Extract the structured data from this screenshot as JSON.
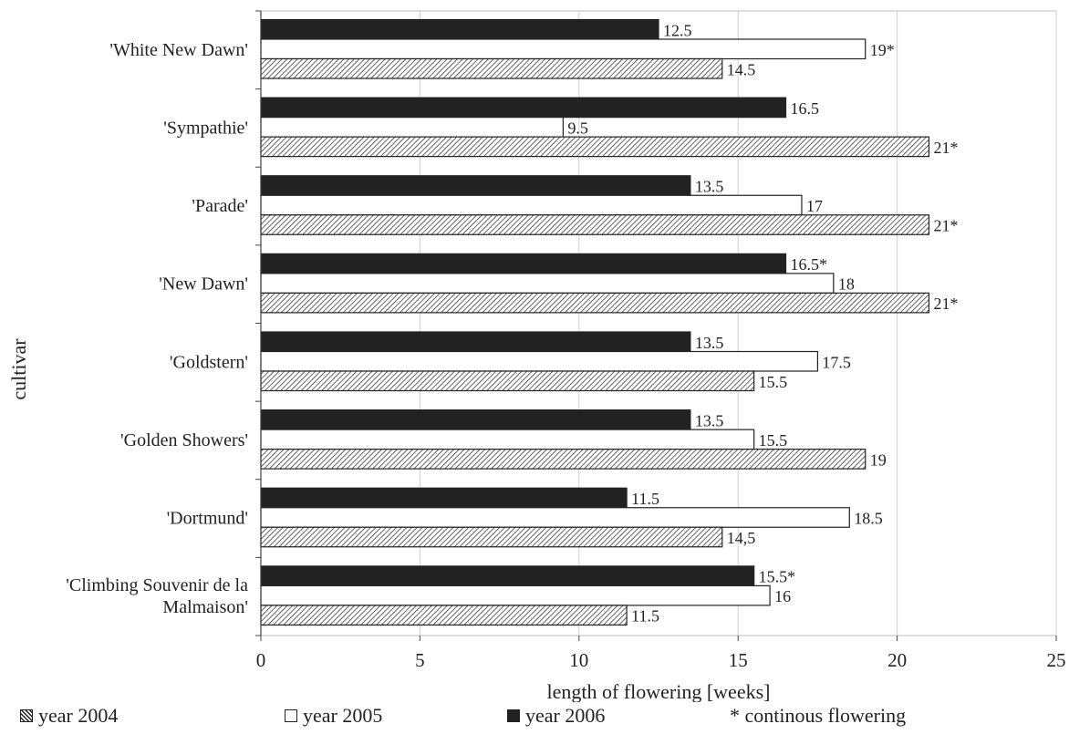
{
  "chart_data": {
    "type": "bar",
    "orientation": "horizontal",
    "xlabel": "length of flowering [weeks]",
    "ylabel": "cultivar",
    "xlim": [
      0,
      25
    ],
    "xticks": [
      "0",
      "5",
      "10",
      "15",
      "20",
      "25"
    ],
    "grid": "vertical",
    "legend_position": "bottom",
    "categories": [
      "'White New Dawn'",
      "'Sympathie'",
      "'Parade'",
      "'New Dawn'",
      "'Goldstern'",
      "'Golden Showers'",
      "'Dortmund'",
      "'Climbing Souvenir de la Malmaison'"
    ],
    "category_lines": [
      [
        "'White New Dawn'"
      ],
      [
        "'Sympathie'"
      ],
      [
        "'Parade'"
      ],
      [
        "'New Dawn'"
      ],
      [
        "'Goldstern'"
      ],
      [
        "'Golden Showers'"
      ],
      [
        "'Dortmund'"
      ],
      [
        "'Climbing Souvenir de la",
        "Malmaison'"
      ]
    ],
    "series": [
      {
        "name": "year 2006",
        "style": "black",
        "values": [
          12.5,
          16.5,
          13.5,
          16.5,
          13.5,
          13.5,
          11.5,
          15.5
        ],
        "labels": [
          "12.5",
          "16.5",
          "13.5",
          "16.5*",
          "13.5",
          "13.5",
          "11.5",
          "15.5*"
        ]
      },
      {
        "name": "year 2005",
        "style": "white",
        "values": [
          19,
          9.5,
          17,
          18,
          17.5,
          15.5,
          18.5,
          16
        ],
        "labels": [
          "19*",
          "9.5",
          "17",
          "18",
          "17.5",
          "15.5",
          "18.5",
          "16"
        ]
      },
      {
        "name": "year 2004",
        "style": "hatched",
        "values": [
          14.5,
          21,
          21,
          21,
          15.5,
          19,
          14.5,
          11.5
        ],
        "labels": [
          "14.5",
          "21*",
          "21*",
          "21*",
          "15.5",
          "19",
          "14,5",
          "11.5"
        ]
      }
    ],
    "legend": {
      "y2004": "year 2004",
      "y2005": "year 2005",
      "y2006": "year 2006",
      "note": "* continous flowering"
    }
  }
}
